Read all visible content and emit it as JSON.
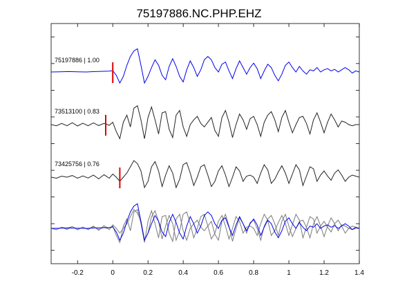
{
  "chart_data": {
    "type": "line",
    "title": "75197886.NC.PHP.EHZ",
    "xlabel": "",
    "ylabel": "",
    "xlim": [
      -0.35,
      1.4
    ],
    "x_ticks": [
      -0.2,
      0,
      0.2,
      0.4,
      0.6,
      0.8,
      1,
      1.2,
      1.4
    ],
    "x_tick_labels": [
      "-0.2",
      "0",
      "0.2",
      "0.4",
      "0.6",
      "0.8",
      "1",
      "1.2",
      "1.4"
    ],
    "y_tick_count": 9,
    "grid": false,
    "colors": {
      "master": "#0000ee",
      "neighbor": "#222222",
      "overlay_neighbor": "#7a7a7a",
      "pick": "#dd0000"
    },
    "series": [
      {
        "name": "75197886 | 1.00",
        "label": "75197886 | 1.00",
        "color": "#0000ee",
        "pick_time": 0.0,
        "x": [
          -0.35,
          -0.3,
          -0.25,
          -0.2,
          -0.15,
          -0.1,
          -0.05,
          -0.02,
          0.0,
          0.02,
          0.04,
          0.06,
          0.08,
          0.1,
          0.12,
          0.14,
          0.16,
          0.18,
          0.2,
          0.22,
          0.24,
          0.26,
          0.28,
          0.3,
          0.32,
          0.34,
          0.36,
          0.38,
          0.4,
          0.42,
          0.44,
          0.46,
          0.48,
          0.5,
          0.52,
          0.54,
          0.56,
          0.58,
          0.6,
          0.62,
          0.64,
          0.66,
          0.68,
          0.7,
          0.72,
          0.74,
          0.76,
          0.78,
          0.8,
          0.82,
          0.84,
          0.86,
          0.88,
          0.9,
          0.92,
          0.94,
          0.96,
          0.98,
          1.0,
          1.02,
          1.04,
          1.06,
          1.08,
          1.1,
          1.12,
          1.14,
          1.16,
          1.18,
          1.2,
          1.22,
          1.24,
          1.26,
          1.28,
          1.3,
          1.32,
          1.34,
          1.36,
          1.38,
          1.4
        ],
        "y": [
          0.0,
          0.01,
          0.02,
          0.01,
          0.0,
          0.02,
          0.03,
          0.04,
          0.06,
          -0.15,
          -0.5,
          -0.2,
          0.3,
          0.7,
          0.95,
          1.05,
          0.3,
          -0.5,
          -0.2,
          0.2,
          0.55,
          0.3,
          -0.15,
          -0.35,
          0.25,
          0.6,
          0.25,
          -0.2,
          -0.45,
          0.1,
          0.5,
          0.2,
          -0.2,
          0.1,
          0.55,
          0.7,
          0.55,
          0.2,
          0.0,
          0.35,
          0.45,
          0.05,
          -0.3,
          0.15,
          0.5,
          0.2,
          -0.1,
          0.2,
          0.4,
          0.15,
          -0.3,
          0.05,
          0.35,
          0.2,
          -0.15,
          -0.4,
          -0.1,
          0.3,
          0.45,
          0.2,
          0.0,
          0.25,
          0.05,
          -0.1,
          0.1,
          0.05,
          0.2,
          0.0,
          0.1,
          0.15,
          0.05,
          0.12,
          0.0,
          0.1,
          0.2,
          0.1,
          -0.05,
          0.05,
          0.0
        ]
      },
      {
        "name": "73513100 | 0.83",
        "label": "73513100 | 0.83",
        "color": "#222222",
        "pick_time": -0.04,
        "x": [
          -0.35,
          -0.32,
          -0.29,
          -0.26,
          -0.23,
          -0.2,
          -0.17,
          -0.14,
          -0.11,
          -0.08,
          -0.05,
          -0.02,
          0.0,
          0.02,
          0.04,
          0.06,
          0.08,
          0.1,
          0.12,
          0.14,
          0.16,
          0.18,
          0.2,
          0.22,
          0.24,
          0.26,
          0.28,
          0.3,
          0.32,
          0.34,
          0.36,
          0.38,
          0.4,
          0.42,
          0.44,
          0.46,
          0.48,
          0.5,
          0.52,
          0.54,
          0.56,
          0.58,
          0.6,
          0.62,
          0.64,
          0.66,
          0.68,
          0.7,
          0.72,
          0.74,
          0.76,
          0.78,
          0.8,
          0.82,
          0.84,
          0.86,
          0.88,
          0.9,
          0.92,
          0.94,
          0.96,
          0.98,
          1.0,
          1.02,
          1.04,
          1.06,
          1.08,
          1.1,
          1.12,
          1.14,
          1.16,
          1.18,
          1.2,
          1.22,
          1.24,
          1.26,
          1.28,
          1.3,
          1.32,
          1.34,
          1.36,
          1.38,
          1.4
        ],
        "y": [
          0.0,
          -0.05,
          0.05,
          -0.05,
          0.08,
          -0.06,
          0.06,
          -0.05,
          0.07,
          -0.04,
          0.05,
          -0.03,
          0.1,
          -0.3,
          -0.6,
          0.1,
          0.4,
          -0.1,
          0.7,
          0.8,
          0.2,
          -0.6,
          0.3,
          0.75,
          0.2,
          -0.4,
          0.5,
          0.55,
          -0.2,
          -0.55,
          0.4,
          0.6,
          -0.1,
          -0.5,
          0.0,
          0.2,
          0.35,
          0.05,
          -0.1,
          0.1,
          0.3,
          -0.25,
          -0.5,
          0.3,
          0.6,
          0.1,
          -0.55,
          0.0,
          0.45,
          0.2,
          -0.2,
          0.25,
          0.35,
          0.0,
          -0.5,
          0.1,
          0.4,
          0.55,
          0.2,
          -0.3,
          0.3,
          0.6,
          0.1,
          -0.35,
          0.0,
          0.3,
          0.35,
          0.05,
          -0.4,
          0.2,
          0.5,
          0.1,
          -0.35,
          0.1,
          0.45,
          0.2,
          -0.1,
          0.15,
          0.1,
          0.0,
          -0.05,
          0.0,
          0.0
        ]
      },
      {
        "name": "73425756 | 0.76",
        "label": "73425756 | 0.76",
        "color": "#222222",
        "pick_time": 0.04,
        "x": [
          -0.35,
          -0.32,
          -0.29,
          -0.26,
          -0.23,
          -0.2,
          -0.17,
          -0.14,
          -0.11,
          -0.08,
          -0.05,
          -0.02,
          0.0,
          0.02,
          0.04,
          0.06,
          0.08,
          0.1,
          0.12,
          0.14,
          0.16,
          0.18,
          0.2,
          0.22,
          0.24,
          0.26,
          0.28,
          0.3,
          0.32,
          0.34,
          0.36,
          0.38,
          0.4,
          0.42,
          0.44,
          0.46,
          0.48,
          0.5,
          0.52,
          0.54,
          0.56,
          0.58,
          0.6,
          0.62,
          0.64,
          0.66,
          0.68,
          0.7,
          0.72,
          0.74,
          0.76,
          0.78,
          0.8,
          0.82,
          0.84,
          0.86,
          0.88,
          0.9,
          0.92,
          0.94,
          0.96,
          0.98,
          1.0,
          1.02,
          1.04,
          1.06,
          1.08,
          1.1,
          1.12,
          1.14,
          1.16,
          1.18,
          1.2,
          1.22,
          1.24,
          1.26,
          1.28,
          1.3,
          1.32,
          1.34,
          1.36,
          1.38,
          1.4
        ],
        "y": [
          0.0,
          -0.05,
          0.05,
          0.0,
          0.08,
          -0.05,
          0.06,
          -0.04,
          0.1,
          -0.08,
          0.12,
          -0.05,
          0.15,
          0.0,
          -0.2,
          0.0,
          0.2,
          0.5,
          0.8,
          0.65,
          0.3,
          -0.5,
          -0.2,
          0.5,
          0.75,
          0.3,
          -0.45,
          0.1,
          0.55,
          0.2,
          -0.5,
          -0.1,
          0.6,
          0.7,
          0.2,
          -0.4,
          0.0,
          0.5,
          0.6,
          0.1,
          -0.45,
          -0.2,
          0.3,
          0.55,
          0.1,
          -0.45,
          0.0,
          0.5,
          0.3,
          -0.2,
          0.05,
          0.1,
          0.0,
          -0.3,
          0.2,
          0.6,
          0.35,
          -0.3,
          -0.1,
          0.25,
          0.55,
          0.2,
          -0.3,
          0.15,
          0.6,
          0.35,
          -0.4,
          0.05,
          0.5,
          0.4,
          -0.2,
          0.1,
          0.3,
          0.05,
          -0.15,
          0.2,
          0.35,
          0.1,
          -0.2,
          0.0,
          0.1,
          0.05,
          0.0
        ]
      }
    ],
    "overlay": {
      "description_visible": false,
      "series_indices": [
        1,
        2,
        0
      ]
    }
  }
}
